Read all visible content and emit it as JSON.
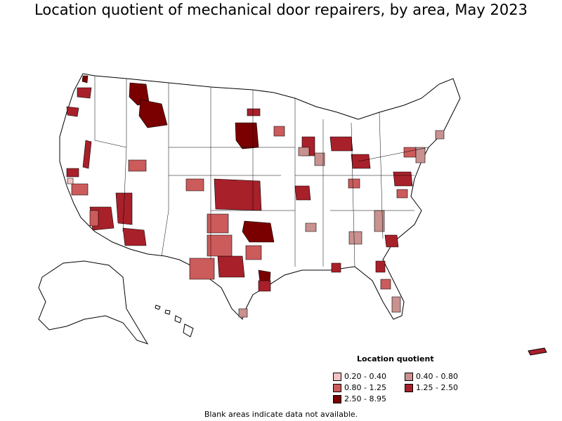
{
  "title": "Location quotient of mechanical door repairers, by area, May 2023",
  "legend": {
    "title": "Location quotient",
    "items": [
      {
        "label": "0.20 - 0.40",
        "color": "#f3c2c2"
      },
      {
        "label": "0.40 - 0.80",
        "color": "#c9918f"
      },
      {
        "label": "0.80 - 1.25",
        "color": "#cc5b5b"
      },
      {
        "label": "1.25 - 2.50",
        "color": "#a8202a"
      },
      {
        "label": "2.50 - 8.95",
        "color": "#7a0000"
      }
    ]
  },
  "footnote": "Blank areas indicate data not available."
}
